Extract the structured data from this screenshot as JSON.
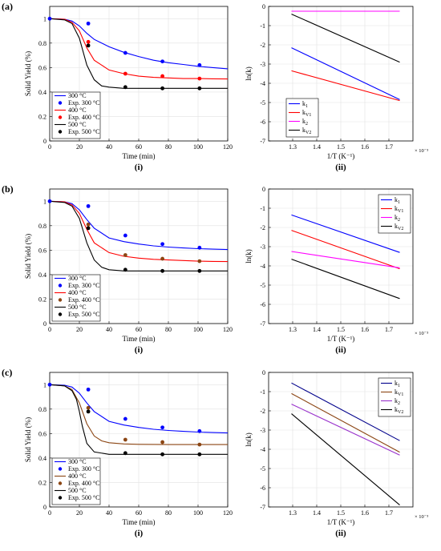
{
  "figure": {
    "panel_labels": [
      "(a)",
      "(b)",
      "(c)"
    ],
    "sublabels": [
      "(i)",
      "(ii)"
    ]
  },
  "chart_data": [
    {
      "type": "line",
      "panel": "(a)",
      "sub": "(i)",
      "xlabel": "Time (min)",
      "ylabel": "Solid Yield (%)",
      "xlim": [
        0,
        120
      ],
      "ylim": [
        0,
        1.1
      ],
      "xticks": [
        0,
        20,
        40,
        60,
        80,
        100,
        120
      ],
      "yticks": [
        0,
        0.2,
        0.4,
        0.6,
        0.8,
        1
      ],
      "grid": true,
      "legend_position": "bottom-left",
      "series": [
        {
          "name": "300 °C",
          "color": "#0000ff",
          "x": [
            0,
            10,
            15,
            20,
            25,
            30,
            40,
            50,
            60,
            70,
            80,
            90,
            100,
            110,
            120
          ],
          "y": [
            1,
            0.995,
            0.98,
            0.94,
            0.88,
            0.83,
            0.77,
            0.725,
            0.69,
            0.66,
            0.64,
            0.625,
            0.61,
            0.6,
            0.59
          ]
        },
        {
          "name": "400 °C",
          "color": "#ff0000",
          "x": [
            0,
            10,
            15,
            20,
            25,
            30,
            40,
            50,
            60,
            70,
            80,
            90,
            100,
            110,
            120
          ],
          "y": [
            1,
            0.995,
            0.97,
            0.9,
            0.76,
            0.66,
            0.58,
            0.55,
            0.53,
            0.52,
            0.515,
            0.51,
            0.51,
            0.508,
            0.507
          ]
        },
        {
          "name": "500 °C",
          "color": "#000000",
          "x": [
            0,
            10,
            15,
            20,
            25,
            30,
            35,
            40,
            50,
            60,
            80,
            100,
            120
          ],
          "y": [
            1,
            0.99,
            0.96,
            0.84,
            0.62,
            0.5,
            0.45,
            0.44,
            0.43,
            0.43,
            0.43,
            0.43,
            0.43
          ]
        }
      ],
      "scatter": [
        {
          "name": "Exp. 300 °C",
          "color": "#0000ff",
          "x": [
            0,
            26,
            51,
            76,
            101
          ],
          "y": [
            1,
            0.96,
            0.72,
            0.65,
            0.62
          ]
        },
        {
          "name": "Exp. 400 °C",
          "color": "#ff0000",
          "x": [
            26,
            51,
            76,
            101
          ],
          "y": [
            0.81,
            0.55,
            0.53,
            0.51
          ]
        },
        {
          "name": "Exp. 500 °C",
          "color": "#000000",
          "x": [
            26,
            51,
            76,
            101
          ],
          "y": [
            0.78,
            0.44,
            0.43,
            0.43
          ]
        }
      ]
    },
    {
      "type": "line",
      "panel": "(a)",
      "sub": "(ii)",
      "xlabel": "1/T (K⁻¹)",
      "ylabel": "ln(k)",
      "xlim": [
        1.2,
        1.8
      ],
      "ylim": [
        -7,
        0
      ],
      "xticks": [
        1.3,
        1.4,
        1.5,
        1.6,
        1.7
      ],
      "yticks": [
        0,
        -1,
        -2,
        -3,
        -4,
        -5,
        -6,
        -7
      ],
      "x_multiplier": "× 10⁻³",
      "grid": true,
      "legend_position": "bottom-left",
      "series": [
        {
          "name": "k",
          "sub": "1",
          "color": "#0000ff",
          "x": [
            1.295,
            1.745
          ],
          "y": [
            -2.15,
            -4.85
          ]
        },
        {
          "name": "k",
          "sub": "V1",
          "color": "#ff0000",
          "x": [
            1.295,
            1.745
          ],
          "y": [
            -3.35,
            -4.9
          ]
        },
        {
          "name": "k",
          "sub": "2",
          "color": "#ff00ff",
          "x": [
            1.295,
            1.745
          ],
          "y": [
            -0.25,
            -0.25
          ]
        },
        {
          "name": "k",
          "sub": "V2",
          "color": "#000000",
          "x": [
            1.295,
            1.745
          ],
          "y": [
            -0.4,
            -2.9
          ]
        }
      ]
    },
    {
      "type": "line",
      "panel": "(b)",
      "sub": "(i)",
      "xlabel": "Time (min)",
      "ylabel": "Solid Yield (%)",
      "xlim": [
        0,
        120
      ],
      "ylim": [
        0,
        1.1
      ],
      "xticks": [
        0,
        20,
        40,
        60,
        80,
        100,
        120
      ],
      "yticks": [
        0,
        0.2,
        0.4,
        0.6,
        0.8,
        1
      ],
      "grid": true,
      "legend_position": "bottom-left",
      "series": [
        {
          "name": "300 °C",
          "color": "#0000ff",
          "x": [
            0,
            10,
            15,
            20,
            25,
            30,
            40,
            50,
            60,
            70,
            80,
            90,
            100,
            110,
            120
          ],
          "y": [
            1,
            0.995,
            0.98,
            0.93,
            0.85,
            0.78,
            0.7,
            0.67,
            0.65,
            0.635,
            0.625,
            0.618,
            0.612,
            0.608,
            0.605
          ]
        },
        {
          "name": "400 °C",
          "color": "#ff0000",
          "x": [
            0,
            10,
            15,
            20,
            25,
            30,
            40,
            50,
            60,
            70,
            80,
            90,
            100,
            110,
            120
          ],
          "y": [
            1,
            0.995,
            0.97,
            0.9,
            0.77,
            0.66,
            0.58,
            0.55,
            0.535,
            0.525,
            0.52,
            0.515,
            0.51,
            0.508,
            0.507
          ]
        },
        {
          "name": "500 °C",
          "color": "#000000",
          "x": [
            0,
            10,
            15,
            20,
            25,
            30,
            35,
            40,
            50,
            60,
            80,
            100,
            120
          ],
          "y": [
            1,
            0.99,
            0.96,
            0.86,
            0.66,
            0.52,
            0.46,
            0.44,
            0.43,
            0.43,
            0.43,
            0.43,
            0.43
          ]
        }
      ],
      "scatter": [
        {
          "name": "Exp. 300 °C",
          "color": "#0000ff",
          "x": [
            0,
            26,
            51,
            76,
            101
          ],
          "y": [
            1,
            0.96,
            0.72,
            0.65,
            0.62
          ]
        },
        {
          "name": "Exp. 400 °C",
          "color": "#8b4513",
          "x": [
            26,
            51,
            76,
            101
          ],
          "y": [
            0.81,
            0.56,
            0.53,
            0.51
          ]
        },
        {
          "name": "Exp. 500 °C",
          "color": "#000000",
          "x": [
            26,
            51,
            76,
            101
          ],
          "y": [
            0.78,
            0.44,
            0.43,
            0.43
          ]
        }
      ]
    },
    {
      "type": "line",
      "panel": "(b)",
      "sub": "(ii)",
      "xlabel": "1/T (K⁻¹)",
      "ylabel": "ln(k)",
      "xlim": [
        1.2,
        1.8
      ],
      "ylim": [
        -7,
        0
      ],
      "xticks": [
        1.3,
        1.4,
        1.5,
        1.6,
        1.7
      ],
      "yticks": [
        0,
        -1,
        -2,
        -3,
        -4,
        -5,
        -6,
        -7
      ],
      "x_multiplier": "× 10⁻³",
      "grid": true,
      "legend_position": "top-right",
      "series": [
        {
          "name": "k",
          "sub": "1",
          "color": "#0000ff",
          "x": [
            1.295,
            1.745
          ],
          "y": [
            -1.35,
            -3.3
          ]
        },
        {
          "name": "k",
          "sub": "V1",
          "color": "#ff0000",
          "x": [
            1.295,
            1.745
          ],
          "y": [
            -2.15,
            -4.15
          ]
        },
        {
          "name": "k",
          "sub": "2",
          "color": "#ff00ff",
          "x": [
            1.295,
            1.745
          ],
          "y": [
            -3.25,
            -4.1
          ]
        },
        {
          "name": "k",
          "sub": "V2",
          "color": "#000000",
          "x": [
            1.295,
            1.745
          ],
          "y": [
            -3.65,
            -5.7
          ]
        }
      ]
    },
    {
      "type": "line",
      "panel": "(c)",
      "sub": "(i)",
      "xlabel": "Time (min)",
      "ylabel": "Solid Yield (%)",
      "xlim": [
        0,
        120
      ],
      "ylim": [
        0,
        1.1
      ],
      "xticks": [
        0,
        20,
        40,
        60,
        80,
        100,
        120
      ],
      "yticks": [
        0,
        0.2,
        0.4,
        0.6,
        0.8,
        1
      ],
      "grid": true,
      "legend_position": "bottom-left",
      "series": [
        {
          "name": "300 °C",
          "color": "#0000ff",
          "x": [
            0,
            10,
            15,
            20,
            25,
            30,
            40,
            50,
            60,
            70,
            80,
            90,
            100,
            110,
            120
          ],
          "y": [
            1,
            0.995,
            0.98,
            0.93,
            0.85,
            0.78,
            0.7,
            0.67,
            0.65,
            0.635,
            0.625,
            0.618,
            0.612,
            0.608,
            0.605
          ]
        },
        {
          "name": "400 °C",
          "color": "#8b4513",
          "x": [
            0,
            10,
            15,
            20,
            25,
            30,
            35,
            40,
            50,
            60,
            80,
            100,
            120
          ],
          "y": [
            1,
            0.99,
            0.96,
            0.85,
            0.68,
            0.58,
            0.54,
            0.525,
            0.515,
            0.512,
            0.51,
            0.51,
            0.51
          ]
        },
        {
          "name": "500 °C",
          "color": "#000000",
          "x": [
            0,
            10,
            15,
            18,
            20,
            22,
            25,
            30,
            40,
            50,
            60,
            80,
            100,
            120
          ],
          "y": [
            1,
            0.99,
            0.95,
            0.88,
            0.78,
            0.66,
            0.52,
            0.45,
            0.43,
            0.43,
            0.43,
            0.43,
            0.43,
            0.43
          ]
        }
      ],
      "scatter": [
        {
          "name": "Exp. 300 °C",
          "color": "#0000ff",
          "x": [
            0,
            26,
            51,
            76,
            101
          ],
          "y": [
            1,
            0.96,
            0.72,
            0.65,
            0.62
          ]
        },
        {
          "name": "Exp. 400 °C",
          "color": "#8b4513",
          "x": [
            26,
            51,
            76,
            101
          ],
          "y": [
            0.81,
            0.55,
            0.53,
            0.51
          ]
        },
        {
          "name": "Exp. 500 °C",
          "color": "#000000",
          "x": [
            26,
            51,
            76,
            101
          ],
          "y": [
            0.78,
            0.44,
            0.43,
            0.43
          ]
        }
      ]
    },
    {
      "type": "line",
      "panel": "(c)",
      "sub": "(ii)",
      "xlabel": "1/T (K⁻¹)",
      "ylabel": "ln(k)",
      "xlim": [
        1.2,
        1.8
      ],
      "ylim": [
        -7,
        0
      ],
      "xticks": [
        1.3,
        1.4,
        1.5,
        1.6,
        1.7
      ],
      "yticks": [
        0,
        -1,
        -2,
        -3,
        -4,
        -5,
        -6,
        -7
      ],
      "x_multiplier": "× 10⁻³",
      "grid": true,
      "legend_position": "top-right",
      "series": [
        {
          "name": "k",
          "sub": "1",
          "color": "#00008b",
          "x": [
            1.295,
            1.745
          ],
          "y": [
            -0.55,
            -3.55
          ]
        },
        {
          "name": "k",
          "sub": "V1",
          "color": "#8b4513",
          "x": [
            1.295,
            1.745
          ],
          "y": [
            -1.1,
            -4.15
          ]
        },
        {
          "name": "k",
          "sub": "2",
          "color": "#9932cc",
          "x": [
            1.295,
            1.745
          ],
          "y": [
            -1.65,
            -4.3
          ]
        },
        {
          "name": "k",
          "sub": "V2",
          "color": "#000000",
          "x": [
            1.295,
            1.745
          ],
          "y": [
            -2.15,
            -6.9
          ]
        }
      ]
    }
  ]
}
